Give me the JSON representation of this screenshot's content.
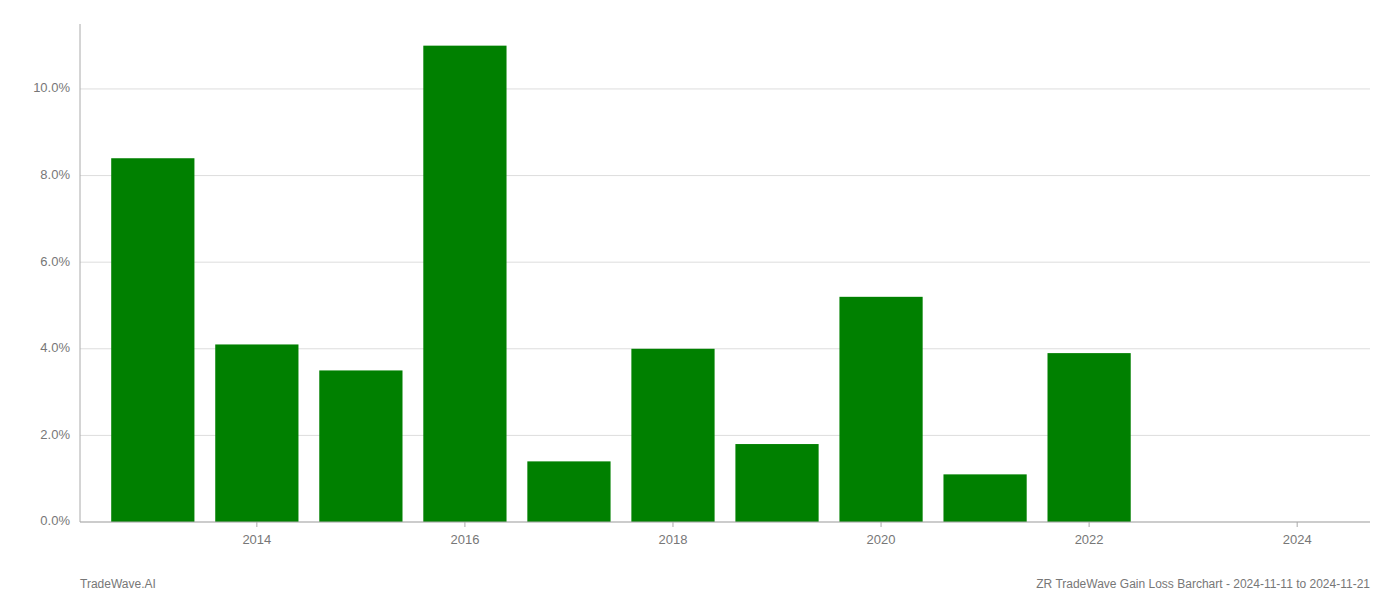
{
  "chart_data": {
    "type": "bar",
    "x": [
      2013,
      2014,
      2015,
      2016,
      2017,
      2018,
      2019,
      2020,
      2021,
      2022,
      2023
    ],
    "values": [
      0.084,
      0.041,
      0.035,
      0.11,
      0.014,
      0.04,
      0.018,
      0.052,
      0.011,
      0.039,
      0.0
    ],
    "color": "#008000",
    "xlim": [
      2012.3,
      2024.7
    ],
    "xticks": [
      2014,
      2016,
      2018,
      2020,
      2022,
      2024
    ],
    "ylim": [
      0,
      0.115
    ],
    "yticks": [
      {
        "value": 0.0,
        "label": "0.0%"
      },
      {
        "value": 0.02,
        "label": "2.0%"
      },
      {
        "value": 0.04,
        "label": "4.0%"
      },
      {
        "value": 0.06,
        "label": "6.0%"
      },
      {
        "value": 0.08,
        "label": "8.0%"
      },
      {
        "value": 0.1,
        "label": "10.0%"
      }
    ],
    "grid": true,
    "annotations": [
      "TradeWave.AI",
      "ZR TradeWave Gain Loss Barchart - 2024-11-11 to 2024-11-21"
    ]
  }
}
